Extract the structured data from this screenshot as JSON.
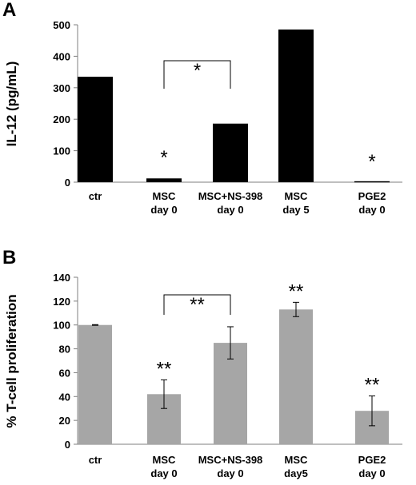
{
  "chart_data": [
    {
      "panel": "A",
      "type": "bar",
      "ylabel": "IL-12 (pg/mL)",
      "xlabel": "",
      "ylim": [
        0,
        500
      ],
      "yticks": [
        0,
        100,
        200,
        300,
        400,
        500
      ],
      "categories": [
        [
          "ctr"
        ],
        [
          "MSC",
          "day 0"
        ],
        [
          "MSC+NS-398",
          "day 0"
        ],
        [
          "MSC",
          "day 5"
        ],
        [
          "PGE2",
          "day 0"
        ]
      ],
      "values": [
        335,
        12,
        186,
        485,
        3
      ],
      "color": "#000000",
      "annotations": [
        {
          "category_index": 1,
          "text": "*"
        },
        {
          "category_index": 4,
          "text": "*"
        }
      ],
      "bracket": {
        "from": 1,
        "to": 2,
        "text": "*"
      }
    },
    {
      "panel": "B",
      "type": "bar",
      "ylabel": "% T-cell proliferation",
      "xlabel": "",
      "ylim": [
        0,
        140
      ],
      "yticks": [
        0,
        20,
        40,
        60,
        80,
        100,
        120,
        140
      ],
      "categories": [
        [
          "ctr"
        ],
        [
          "MSC",
          "day 0"
        ],
        [
          "MSC+NS-398",
          "day 0"
        ],
        [
          "MSC",
          "day5"
        ],
        [
          "PGE2",
          "day 0"
        ]
      ],
      "values": [
        100,
        42,
        85,
        113,
        28
      ],
      "errors": [
        0.3,
        12,
        13.5,
        6,
        12.5
      ],
      "color": "#a6a6a6",
      "annotations": [
        {
          "category_index": 1,
          "text": "**"
        },
        {
          "category_index": 3,
          "text": "**"
        },
        {
          "category_index": 4,
          "text": "**"
        }
      ],
      "bracket": {
        "from": 1,
        "to": 2,
        "text": "**"
      }
    }
  ]
}
